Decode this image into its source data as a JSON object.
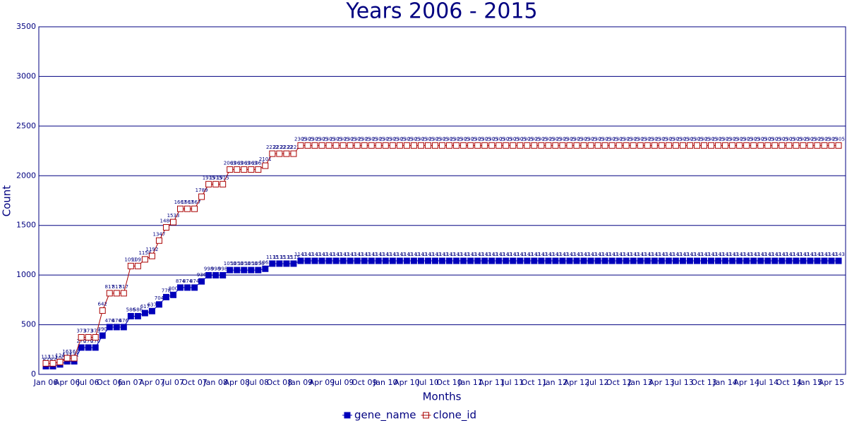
{
  "chart_data": {
    "type": "line",
    "title": "Years 2006 - 2015",
    "xlabel": "Months",
    "ylabel": "Count",
    "categories": [
      "Jan 06",
      null,
      null,
      "Apr 06",
      null,
      null,
      "Jul 06",
      null,
      null,
      "Oct 06",
      null,
      null,
      "Jan 07",
      null,
      null,
      "Apr 07",
      null,
      null,
      "Jul 07",
      null,
      null,
      "Oct 07",
      null,
      null,
      "Jan 08",
      null,
      null,
      "Apr 08",
      null,
      null,
      "Jul 08",
      null,
      null,
      "Oct 08",
      null,
      null,
      "Jan 09",
      null,
      null,
      "Apr 09",
      null,
      null,
      "Jul 09",
      null,
      null,
      "Oct 09",
      null,
      null,
      "Jan 10",
      null,
      null,
      "Apr 10",
      null,
      null,
      "Jul 10",
      null,
      null,
      "Oct 10",
      null,
      null,
      "Jan 11",
      null,
      null,
      "Apr 11",
      null,
      null,
      "Jul 11",
      null,
      null,
      "Oct 11",
      null,
      null,
      "Jan 12",
      null,
      null,
      "Apr 12",
      null,
      null,
      "Jul 12",
      null,
      null,
      "Oct 12",
      null,
      null,
      "Jan 13",
      null,
      null,
      "Apr 13",
      null,
      null,
      "Jul 13",
      null,
      null,
      "Oct 13",
      null,
      null,
      "Jan 14",
      null,
      null,
      "Apr 14",
      null,
      null,
      "Jul 14",
      null,
      null,
      "Oct 14",
      null,
      null,
      "Jan 15",
      null,
      null,
      "Apr 15",
      null
    ],
    "series": [
      {
        "name": "gene_name",
        "color": "#0000bb",
        "marker": "filled",
        "values": [
          82,
          82,
          100,
          131,
          131,
          270,
          270,
          270,
          390,
          476,
          476,
          476,
          586,
          586,
          617,
          637,
          704,
          778,
          800,
          874,
          874,
          874,
          936,
          998,
          998,
          998,
          1050,
          1050,
          1050,
          1050,
          1050,
          1063,
          1115,
          1115,
          1115,
          1115,
          1143,
          1143,
          1143,
          1143,
          1143,
          1143,
          1143,
          1143,
          1143,
          1143,
          1143,
          1143,
          1143,
          1143,
          1143,
          1143,
          1143,
          1143,
          1143,
          1143,
          1143,
          1143,
          1143,
          1143,
          1143,
          1143,
          1143,
          1143,
          1143,
          1143,
          1143,
          1143,
          1143,
          1143,
          1143,
          1143,
          1143,
          1143,
          1143,
          1143,
          1143,
          1143,
          1143,
          1143,
          1143,
          1143,
          1143,
          1143,
          1143,
          1143,
          1143,
          1143,
          1143,
          1143,
          1143,
          1143,
          1143,
          1143,
          1143,
          1143,
          1143,
          1143,
          1143,
          1143,
          1143,
          1143,
          1143,
          1143,
          1143,
          1143,
          1143,
          1143,
          1143,
          1143,
          1143,
          1143,
          1143
        ]
      },
      {
        "name": "clone_id",
        "color": "#aa0000",
        "marker": "open",
        "values": [
          111,
          111,
          124,
          163,
          163,
          373,
          373,
          373,
          642,
          817,
          817,
          817,
          1091,
          1091,
          1158,
          1192,
          1347,
          1480,
          1533,
          1667,
          1667,
          1667,
          1789,
          1915,
          1915,
          1915,
          2063,
          2063,
          2063,
          2063,
          2063,
          2101,
          2222,
          2222,
          2222,
          2222,
          2305,
          2305,
          2305,
          2305,
          2305,
          2305,
          2305,
          2305,
          2305,
          2305,
          2305,
          2305,
          2305,
          2305,
          2305,
          2305,
          2305,
          2305,
          2305,
          2305,
          2305,
          2305,
          2305,
          2305,
          2305,
          2305,
          2305,
          2305,
          2305,
          2305,
          2305,
          2305,
          2305,
          2305,
          2305,
          2305,
          2305,
          2305,
          2305,
          2305,
          2305,
          2305,
          2305,
          2305,
          2305,
          2305,
          2305,
          2305,
          2305,
          2305,
          2305,
          2305,
          2305,
          2305,
          2305,
          2305,
          2305,
          2305,
          2305,
          2305,
          2305,
          2305,
          2305,
          2305,
          2305,
          2305,
          2305,
          2305,
          2305,
          2305,
          2305,
          2305,
          2305,
          2305,
          2305,
          2305,
          2305
        ]
      }
    ],
    "ylim": [
      0,
      3500
    ],
    "yticks": [
      0,
      500,
      1000,
      1500,
      2000,
      2500,
      3000,
      3500
    ],
    "grid": true,
    "legend": "bottom"
  }
}
